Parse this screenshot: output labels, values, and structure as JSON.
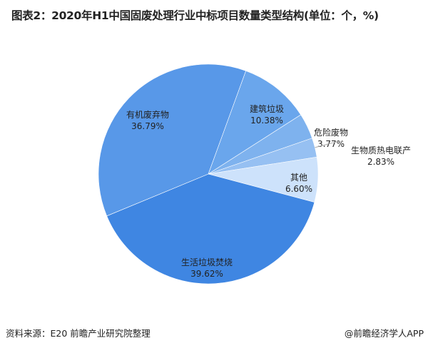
{
  "chart_data": {
    "type": "pie",
    "title": "图表2：2020年H1中国固废处理行业中标项目数量类型结构(单位：个，%)",
    "slices": [
      {
        "name": "建筑垃圾",
        "value": 10.38,
        "label": "10.38%",
        "color": "#6aa6ec"
      },
      {
        "name": "危险废物",
        "value": 3.77,
        "label": "3.77%",
        "color": "#7eb2ee"
      },
      {
        "name": "生物质热电联产",
        "value": 2.83,
        "label": "2.83%",
        "color": "#96c0f2"
      },
      {
        "name": "其他",
        "value": 6.6,
        "label": "6.60%",
        "color": "#cde2fb"
      },
      {
        "name": "生活垃圾焚烧",
        "value": 39.62,
        "label": "39.62%",
        "color": "#3f86e2"
      },
      {
        "name": "有机废弃物",
        "value": 36.79,
        "label": "36.79%",
        "color": "#5898e8"
      }
    ],
    "start_angle_deg": 20
  },
  "footer": {
    "source": "资料来源：E20 前瞻产业研究院整理",
    "credit": "@前瞻经济学人APP"
  }
}
